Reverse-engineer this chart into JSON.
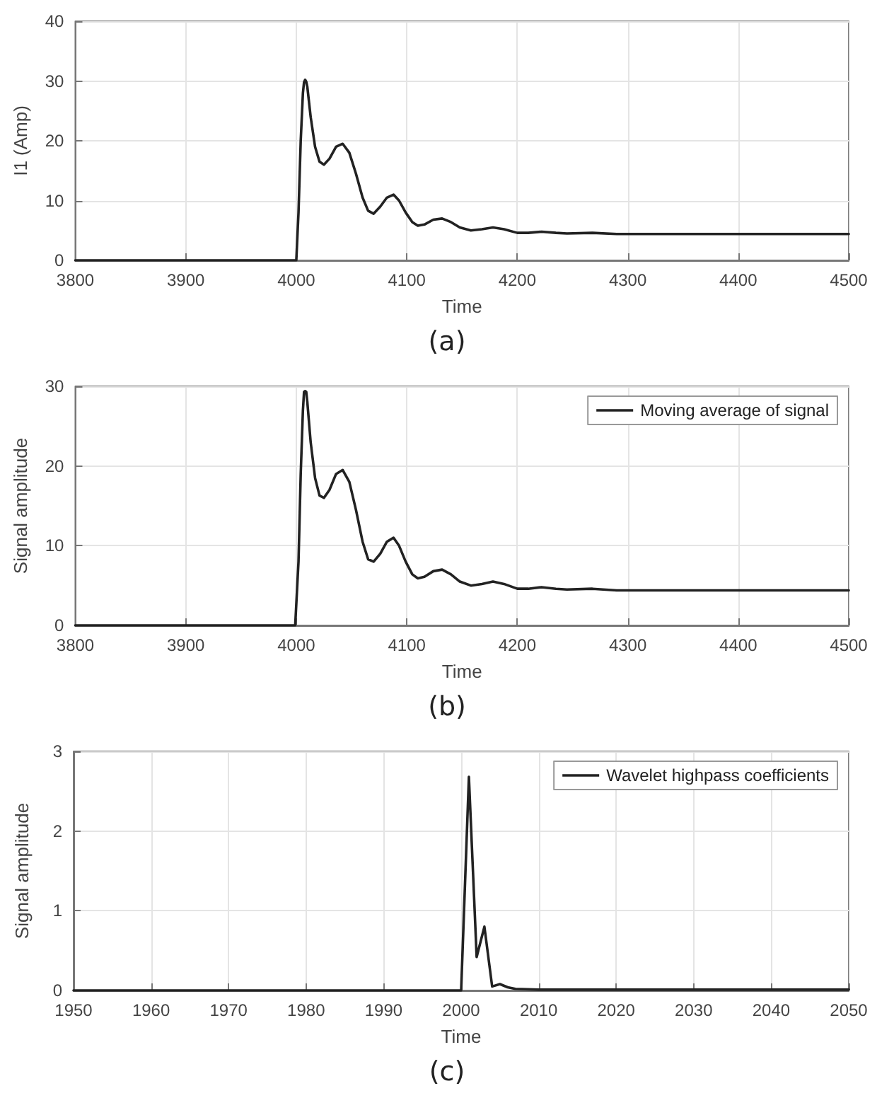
{
  "chart_data": [
    {
      "type": "line",
      "xlabel": "Time",
      "ylabel": "I1 (Amp)",
      "annotations": [
        "(a)"
      ],
      "xlim": [
        3800,
        4500
      ],
      "xticks": [
        3800,
        3900,
        4000,
        4100,
        4200,
        4300,
        4400,
        4500
      ],
      "ylim": [
        0,
        40
      ],
      "yticks": [
        0,
        10,
        20,
        30,
        40
      ],
      "grid": true,
      "legend": false,
      "marker": "none",
      "line_style": "solid",
      "x": [
        3800,
        4000,
        4002,
        4004,
        4006,
        4007,
        4008,
        4009,
        4010,
        4013,
        4017,
        4021,
        4025,
        4030,
        4036,
        4042,
        4048,
        4054,
        4060,
        4065,
        4070,
        4076,
        4082,
        4088,
        4093,
        4099,
        4105,
        4110,
        4116,
        4124,
        4132,
        4140,
        4148,
        4158,
        4168,
        4178,
        4188,
        4200,
        4210,
        4222,
        4235,
        4245,
        4268,
        4290,
        4350,
        4500
      ],
      "series": [
        {
          "color": "#222222",
          "values": [
            0,
            0,
            8,
            20,
            28,
            29.8,
            30.2,
            29.9,
            29,
            24,
            19,
            16.5,
            16,
            17,
            19,
            19.5,
            18,
            14.5,
            10.5,
            8.3,
            7.8,
            9,
            10.5,
            11,
            10,
            8,
            6.4,
            5.8,
            6,
            6.8,
            7,
            6.4,
            5.5,
            5,
            5.2,
            5.5,
            5.2,
            4.6,
            4.6,
            4.8,
            4.6,
            4.5,
            4.6,
            4.4,
            4.4,
            4.4
          ]
        }
      ]
    },
    {
      "type": "line",
      "xlabel": "Time",
      "ylabel": "Signal amplitude",
      "annotations": [
        "(b)"
      ],
      "xlim": [
        3800,
        4500
      ],
      "xticks": [
        3800,
        3900,
        4000,
        4100,
        4200,
        4300,
        4400,
        4500
      ],
      "ylim": [
        0,
        30
      ],
      "yticks": [
        0,
        10,
        20,
        30
      ],
      "grid": true,
      "legend": "top right",
      "marker": "none",
      "line_style": "solid",
      "x": [
        3800,
        3999,
        4002,
        4004,
        4006,
        4007,
        4008,
        4009,
        4010,
        4013,
        4017,
        4021,
        4025,
        4030,
        4036,
        4042,
        4048,
        4054,
        4060,
        4065,
        4070,
        4076,
        4082,
        4088,
        4093,
        4099,
        4105,
        4110,
        4116,
        4124,
        4132,
        4140,
        4148,
        4158,
        4168,
        4178,
        4188,
        4200,
        4210,
        4222,
        4235,
        4245,
        4268,
        4290,
        4350,
        4500
      ],
      "series": [
        {
          "name": "Moving average of signal",
          "color": "#222222",
          "values": [
            0,
            0,
            8,
            19,
            27,
            29.3,
            29.4,
            29.3,
            28,
            23,
            18.5,
            16.3,
            16,
            17,
            19,
            19.5,
            18,
            14.5,
            10.5,
            8.3,
            8,
            9,
            10.5,
            11,
            10,
            8,
            6.4,
            5.9,
            6.1,
            6.8,
            7,
            6.4,
            5.5,
            5,
            5.2,
            5.5,
            5.2,
            4.6,
            4.6,
            4.8,
            4.6,
            4.5,
            4.6,
            4.4,
            4.4,
            4.4
          ]
        }
      ]
    },
    {
      "type": "line",
      "xlabel": "Time",
      "ylabel": "Signal amplitude",
      "annotations": [
        "(c)"
      ],
      "xlim": [
        1950,
        2050
      ],
      "xticks": [
        1950,
        1960,
        1970,
        1980,
        1990,
        2000,
        2010,
        2020,
        2030,
        2040,
        2050
      ],
      "ylim": [
        0,
        3
      ],
      "yticks": [
        0,
        1,
        2,
        3
      ],
      "grid": true,
      "legend": "top right",
      "marker": "none",
      "line_style": "solid",
      "x": [
        1950,
        2000,
        2001,
        2002,
        2003,
        2004,
        2005,
        2006,
        2007,
        2010,
        2050
      ],
      "series": [
        {
          "name": "Wavelet highpass coefficients",
          "color": "#222222",
          "values": [
            0,
            0,
            2.68,
            0.42,
            0.8,
            0.05,
            0.08,
            0.04,
            0.02,
            0.01,
            0.01
          ]
        }
      ]
    }
  ]
}
